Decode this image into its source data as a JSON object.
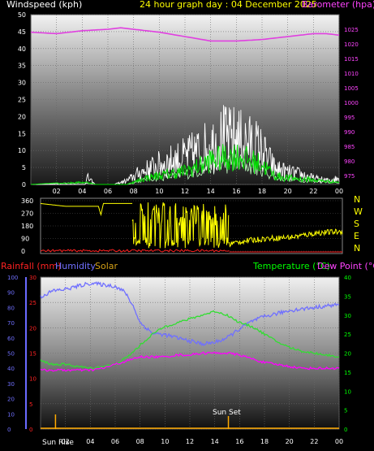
{
  "header": {
    "wind_title": "Windspeed (kph)",
    "date_title": "24 hour graph day : 04 December 2025",
    "baro_title": "Barometer (hpa)"
  },
  "lower_header": {
    "rain_title": "Rainfall (mm)",
    "humidity_title": "Humidity",
    "solar_title": "Solar",
    "temp_title": "Temperature (°C)",
    "dew_title": "Dew Point (°C)"
  },
  "annotations": {
    "sunrise": "Sun Rise",
    "sunset": "Sun Set"
  },
  "colors": {
    "wind_avg": "#ffffff",
    "wind_gust": "#00dd00",
    "wind_low": "#c0ffc0",
    "barometer": "#e040e0",
    "direction": "#ffff00",
    "rain": "#ff0000",
    "humidity": "#7070ff",
    "solar": "#ffaa00",
    "temperature": "#33dd33",
    "dewpoint": "#ff00ff",
    "title_wind": "#ffffff",
    "title_date": "#ffff00",
    "title_baro": "#ff44ff",
    "title_temp": "#00ff00",
    "title_dew": "#ff44ff"
  },
  "chart_data": [
    {
      "type": "line",
      "name": "wind_baro",
      "x_ticks": [
        "02",
        "04",
        "06",
        "08",
        "10",
        "12",
        "14",
        "16",
        "18",
        "20",
        "22",
        "00"
      ],
      "ylim_left": [
        0,
        50
      ],
      "yticks_left": [
        0,
        5,
        10,
        15,
        20,
        25,
        30,
        35,
        40,
        45,
        50
      ],
      "ylim_right": [
        972,
        1030
      ],
      "yticks_right": [
        975,
        980,
        985,
        990,
        995,
        1000,
        1005,
        1010,
        1015,
        1020,
        1025
      ],
      "series": [
        {
          "key": "barometer",
          "hours": [
            0,
            2,
            4,
            6,
            7,
            8,
            10,
            12,
            14,
            15,
            16,
            18,
            20,
            22,
            23,
            24
          ],
          "values": [
            1024,
            1023.5,
            1024.5,
            1025,
            1025.5,
            1025,
            1024,
            1022.5,
            1021,
            1021,
            1021,
            1021.5,
            1022.5,
            1023.5,
            1023.5,
            1023
          ]
        },
        {
          "key": "gust_envelope",
          "hours": [
            0,
            4.2,
            4.4,
            5,
            6.5,
            7.5,
            8.5,
            10,
            11,
            12,
            13,
            14,
            14.5,
            15,
            15.5,
            16,
            16.5,
            17,
            17.5,
            18,
            19,
            20,
            21,
            22,
            23,
            24
          ],
          "values": [
            0,
            0,
            3.5,
            0,
            0,
            2,
            6,
            10,
            12,
            14,
            17,
            20,
            22,
            24,
            23,
            24,
            22,
            21,
            20,
            17,
            8,
            6,
            5,
            3,
            2,
            3
          ]
        },
        {
          "key": "average_envelope",
          "hours": [
            0,
            4.3,
            5,
            7.5,
            8,
            9,
            10,
            11,
            12,
            13,
            14,
            15,
            16,
            17,
            18,
            19,
            20,
            22,
            24
          ],
          "values": [
            0,
            1,
            0,
            0,
            1,
            3,
            4,
            5,
            6,
            8,
            11,
            12,
            13,
            11,
            9,
            4,
            3,
            2,
            1
          ]
        }
      ]
    },
    {
      "type": "scatter",
      "name": "wind_direction",
      "y_ticks": [
        0,
        90,
        180,
        270,
        360
      ],
      "ylim": [
        0,
        360
      ],
      "right_labels": [
        "N",
        "W",
        "S",
        "E",
        "N"
      ],
      "segments": [
        {
          "hours": [
            0,
            2,
            3,
            4,
            4.6,
            4.8,
            5,
            6.2,
            6.8,
            7.3
          ],
          "values": [
            340,
            320,
            320,
            320,
            320,
            260,
            340,
            340,
            340,
            340
          ]
        },
        {
          "hours": [
            7.5,
            8.2,
            9,
            10,
            11,
            12,
            13,
            14,
            14.5,
            15,
            16,
            18,
            20,
            22,
            24
          ],
          "values": [
            60,
            120,
            100,
            140,
            60,
            180,
            120,
            140,
            80,
            50,
            70,
            90,
            100,
            130,
            140
          ]
        }
      ]
    },
    {
      "type": "line",
      "name": "temp_hum_rain",
      "x_ticks": [
        "02",
        "04",
        "06",
        "08",
        "10",
        "12",
        "14",
        "16",
        "18",
        "20",
        "22",
        "00"
      ],
      "ylim_rain": [
        0,
        30
      ],
      "yticks_rain": [
        0,
        5,
        10,
        15,
        20,
        25,
        30
      ],
      "ylim_humidity": [
        0,
        100
      ],
      "yticks_humidity": [
        0,
        10,
        20,
        30,
        40,
        50,
        60,
        70,
        80,
        90,
        100
      ],
      "ylim_temp": [
        0,
        40
      ],
      "yticks_temp": [
        0,
        5,
        10,
        15,
        20,
        25,
        30,
        35,
        40
      ],
      "sunrise_hour": 1.2,
      "sunset_hour": 15.1,
      "series": [
        {
          "key": "humidity",
          "hours": [
            0,
            1,
            2,
            3,
            4,
            5,
            6,
            6.8,
            7.5,
            8,
            9,
            10,
            11,
            12,
            13,
            14,
            15,
            16,
            17,
            18,
            19,
            20,
            21,
            22,
            23,
            24
          ],
          "values": [
            87,
            91,
            92,
            94,
            96,
            95,
            94,
            90,
            80,
            70,
            63,
            62,
            60,
            58,
            56,
            57,
            60,
            66,
            71,
            74,
            76,
            78,
            79,
            80,
            81,
            82
          ]
        },
        {
          "key": "temperature",
          "hours": [
            0,
            1,
            2,
            3,
            4,
            5,
            6,
            7,
            8,
            9,
            10,
            11,
            12,
            13,
            14,
            15,
            16,
            17,
            18,
            19,
            20,
            21,
            22,
            23,
            24
          ],
          "values": [
            18,
            17,
            17,
            16.5,
            16,
            16.5,
            17,
            19,
            22,
            25,
            27,
            28,
            29,
            30,
            31,
            30,
            28,
            27,
            25,
            23,
            21.5,
            20.5,
            20,
            19.5,
            19
          ]
        },
        {
          "key": "dewpoint",
          "hours": [
            0,
            1,
            2,
            3,
            4,
            5,
            6,
            7,
            8,
            9,
            10,
            11,
            12,
            13,
            14,
            15,
            16,
            17,
            18,
            19,
            20,
            21,
            22,
            23,
            24
          ],
          "values": [
            15.5,
            15.5,
            15.5,
            15.5,
            15.5,
            16,
            17,
            18,
            19,
            19,
            19,
            19.5,
            19.5,
            20,
            20,
            20,
            19.5,
            18.5,
            17.5,
            17,
            16.5,
            16,
            16,
            16,
            16
          ]
        },
        {
          "key": "rainfall",
          "hours": [
            0,
            24
          ],
          "values": [
            0,
            0
          ]
        },
        {
          "key": "solar",
          "hours": [
            0,
            24
          ],
          "values": [
            0,
            0
          ]
        }
      ]
    }
  ]
}
